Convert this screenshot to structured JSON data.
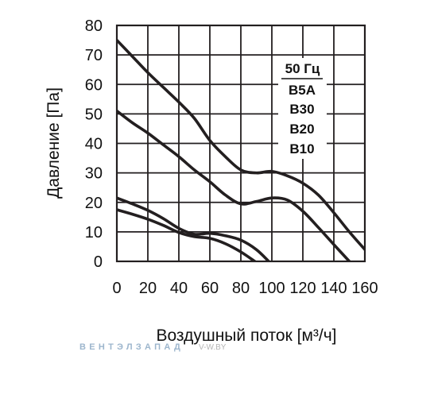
{
  "chart_data": {
    "type": "line",
    "xlabel": "Воздушный поток [м³/ч]",
    "ylabel": "Давление [Па]",
    "xlim": [
      0,
      160
    ],
    "ylim": [
      0,
      80
    ],
    "xticks": [
      0,
      20,
      40,
      60,
      80,
      100,
      120,
      140,
      160
    ],
    "yticks": [
      0,
      10,
      20,
      30,
      40,
      50,
      60,
      70,
      80
    ],
    "grid": true,
    "legend": {
      "title": "50 Гц",
      "placement": "top-right"
    },
    "colors": {
      "curve": "#231f20",
      "grid": "#231f20"
    },
    "series": [
      {
        "name": "B5A",
        "points": [
          [
            0,
            75
          ],
          [
            10,
            69.5
          ],
          [
            20,
            64
          ],
          [
            30,
            59
          ],
          [
            40,
            54
          ],
          [
            50,
            48.5
          ],
          [
            60,
            41
          ],
          [
            70,
            35.5
          ],
          [
            80,
            31
          ],
          [
            90,
            30
          ],
          [
            100,
            30.5
          ],
          [
            110,
            29
          ],
          [
            120,
            26.5
          ],
          [
            130,
            22.5
          ],
          [
            140,
            16.5
          ],
          [
            150,
            10
          ],
          [
            160,
            4
          ]
        ]
      },
      {
        "name": "B30",
        "points": [
          [
            0,
            51
          ],
          [
            10,
            47
          ],
          [
            20,
            43.5
          ],
          [
            30,
            39.5
          ],
          [
            40,
            35.5
          ],
          [
            50,
            31
          ],
          [
            60,
            27
          ],
          [
            70,
            22.5
          ],
          [
            80,
            19.5
          ],
          [
            90,
            20.3
          ],
          [
            100,
            21.5
          ],
          [
            110,
            20.8
          ],
          [
            120,
            17
          ],
          [
            130,
            11.5
          ],
          [
            140,
            5.7
          ],
          [
            150,
            0
          ]
        ]
      },
      {
        "name": "B20",
        "points": [
          [
            0,
            21.5
          ],
          [
            10,
            19.5
          ],
          [
            20,
            17.3
          ],
          [
            30,
            14.5
          ],
          [
            40,
            11.2
          ],
          [
            50,
            9.2
          ],
          [
            60,
            9.5
          ],
          [
            70,
            8.7
          ],
          [
            80,
            7.2
          ],
          [
            90,
            4
          ],
          [
            98,
            0
          ]
        ]
      },
      {
        "name": "B10",
        "points": [
          [
            0,
            17.5
          ],
          [
            10,
            16
          ],
          [
            20,
            14.3
          ],
          [
            30,
            12.2
          ],
          [
            40,
            9.8
          ],
          [
            50,
            8.4
          ],
          [
            60,
            7.8
          ],
          [
            70,
            6
          ],
          [
            80,
            3.2
          ],
          [
            89,
            0
          ]
        ]
      }
    ]
  },
  "watermark": {
    "brand": "ВЕНТЭЛЗАПАД",
    "site": "V-W.BY",
    "brand_color": "#9db6cd",
    "site_color": "#b5b5b5"
  }
}
